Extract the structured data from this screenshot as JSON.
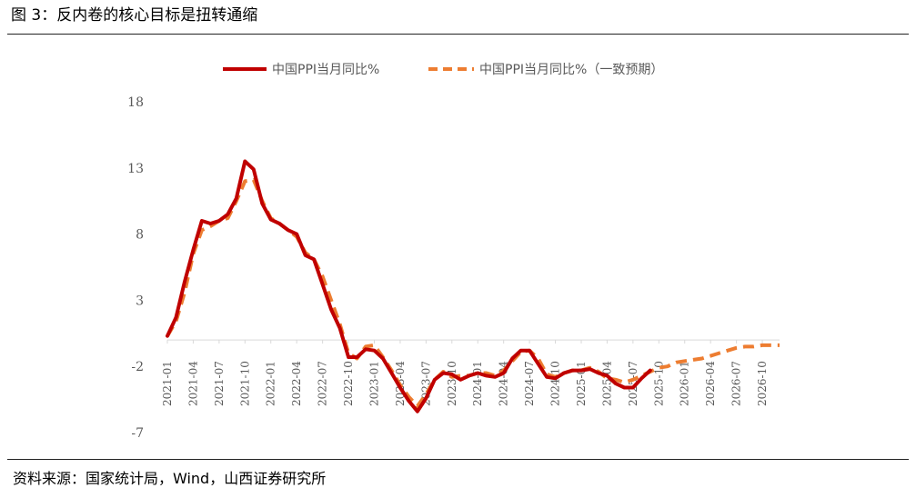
{
  "figure": {
    "title": "图 3：反内卷的核心目标是扭转通缩",
    "source": "资料来源：国家统计局，Wind，山西证券研究所"
  },
  "chart_data": {
    "type": "line",
    "legend_position": "top",
    "grid": false,
    "ylim": [
      -7,
      18
    ],
    "yticks": [
      18,
      13,
      8,
      3,
      -2,
      -7
    ],
    "x_start": "2021-01",
    "x_end": "2026-12",
    "x_tick_labels": [
      "2021-01",
      "2021-04",
      "2021-07",
      "2021-10",
      "2022-01",
      "2022-04",
      "2022-07",
      "2022-10",
      "2023-01",
      "2023-04",
      "2023-07",
      "2023-10",
      "2024-01",
      "2024-04",
      "2024-07",
      "2024-10",
      "2025-01",
      "2025-04",
      "2025-07",
      "2025-10",
      "2026-01",
      "2026-04",
      "2026-07",
      "2026-10"
    ],
    "series": [
      {
        "name": "中国PPI当月同比%",
        "color": "#c00000",
        "style": "solid",
        "x": [
          "2021-01",
          "2021-02",
          "2021-03",
          "2021-04",
          "2021-05",
          "2021-06",
          "2021-07",
          "2021-08",
          "2021-09",
          "2021-10",
          "2021-11",
          "2021-12",
          "2022-01",
          "2022-02",
          "2022-03",
          "2022-04",
          "2022-05",
          "2022-06",
          "2022-07",
          "2022-08",
          "2022-09",
          "2022-10",
          "2022-11",
          "2022-12",
          "2023-01",
          "2023-02",
          "2023-03",
          "2023-04",
          "2023-05",
          "2023-06",
          "2023-07",
          "2023-08",
          "2023-09",
          "2023-10",
          "2023-11",
          "2023-12",
          "2024-01",
          "2024-02",
          "2024-03",
          "2024-04",
          "2024-05",
          "2024-06",
          "2024-07",
          "2024-08",
          "2024-09",
          "2024-10",
          "2024-11",
          "2024-12",
          "2025-01",
          "2025-02",
          "2025-03",
          "2025-04",
          "2025-05",
          "2025-06",
          "2025-07",
          "2025-08",
          "2025-09"
        ],
        "values": [
          0.3,
          1.7,
          4.4,
          6.8,
          9.0,
          8.8,
          9.0,
          9.5,
          10.7,
          13.5,
          12.9,
          10.3,
          9.1,
          8.8,
          8.3,
          8.0,
          6.4,
          6.1,
          4.2,
          2.3,
          0.9,
          -1.3,
          -1.3,
          -0.7,
          -0.8,
          -1.4,
          -2.5,
          -3.6,
          -4.6,
          -5.4,
          -4.4,
          -3.0,
          -2.5,
          -2.6,
          -3.0,
          -2.7,
          -2.5,
          -2.7,
          -2.8,
          -2.5,
          -1.4,
          -0.8,
          -0.8,
          -1.8,
          -2.8,
          -2.9,
          -2.5,
          -2.3,
          -2.3,
          -2.2,
          -2.5,
          -2.7,
          -3.3,
          -3.6,
          -3.6,
          -2.9,
          -2.3
        ]
      },
      {
        "name": "中国PPI当月同比%（一致预期）",
        "color": "#ed7d31",
        "style": "dashed",
        "x": [
          "2021-01",
          "2021-02",
          "2021-03",
          "2021-04",
          "2021-05",
          "2021-06",
          "2021-07",
          "2021-08",
          "2021-09",
          "2021-10",
          "2021-11",
          "2021-12",
          "2022-01",
          "2022-02",
          "2022-03",
          "2022-04",
          "2022-05",
          "2022-06",
          "2022-07",
          "2022-08",
          "2022-09",
          "2022-10",
          "2022-11",
          "2022-12",
          "2023-01",
          "2023-02",
          "2023-03",
          "2023-04",
          "2023-05",
          "2023-06",
          "2023-07",
          "2023-08",
          "2023-09",
          "2023-10",
          "2023-11",
          "2023-12",
          "2024-01",
          "2024-02",
          "2024-03",
          "2024-04",
          "2024-05",
          "2024-06",
          "2024-07",
          "2024-08",
          "2024-09",
          "2024-10",
          "2024-11",
          "2024-12",
          "2025-01",
          "2025-02",
          "2025-03",
          "2025-04",
          "2025-05",
          "2025-06",
          "2025-07",
          "2025-08",
          "2025-09",
          "2025-10",
          "2025-11",
          "2025-12",
          "2026-01",
          "2026-02",
          "2026-03",
          "2026-04",
          "2026-05",
          "2026-06",
          "2026-07",
          "2026-08",
          "2026-09",
          "2026-10",
          "2026-11",
          "2026-12"
        ],
        "values": [
          0.3,
          1.4,
          3.6,
          6.5,
          8.3,
          8.6,
          9.0,
          9.2,
          10.5,
          12.0,
          12.1,
          10.5,
          9.2,
          8.8,
          8.3,
          7.8,
          6.6,
          6.1,
          4.8,
          3.0,
          1.2,
          -1.0,
          -1.4,
          -0.5,
          -0.4,
          -1.3,
          -2.3,
          -3.4,
          -4.3,
          -5.0,
          -4.1,
          -3.0,
          -2.4,
          -2.8,
          -2.7,
          -2.7,
          -2.5,
          -2.5,
          -2.7,
          -2.3,
          -1.6,
          -0.9,
          -0.8,
          -1.4,
          -2.6,
          -2.8,
          -2.5,
          -2.3,
          -2.3,
          -2.1,
          -2.4,
          -2.9,
          -3.0,
          -3.2,
          -3.0,
          -2.7,
          -2.4,
          -2.1,
          -2.0,
          -1.7,
          -1.6,
          -1.5,
          -1.4,
          -1.2,
          -1.0,
          -0.8,
          -0.6,
          -0.5,
          -0.5,
          -0.4,
          -0.4,
          -0.4
        ]
      }
    ]
  }
}
